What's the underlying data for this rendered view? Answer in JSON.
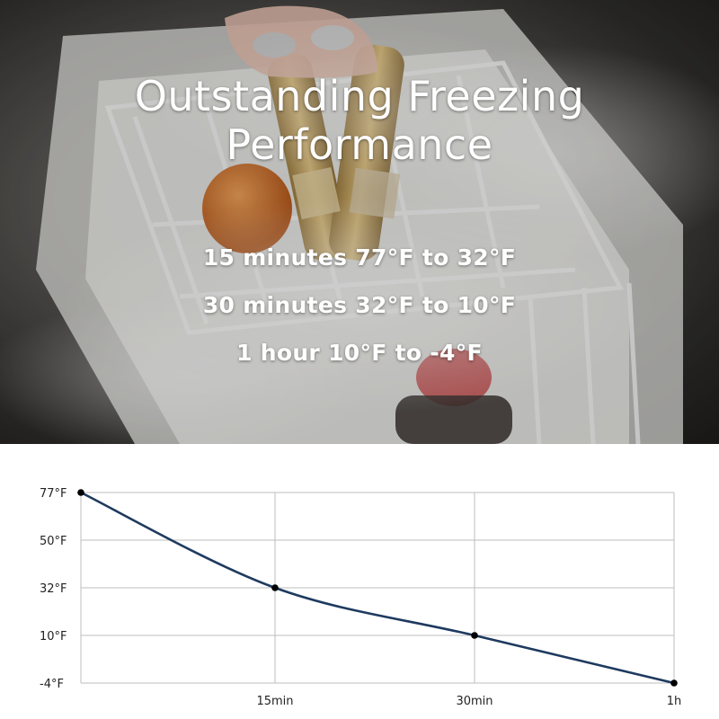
{
  "hero": {
    "title_line1": "Outstanding Freezing",
    "title_line2": "Performance",
    "lines": [
      "15 minutes 77°F to 32°F",
      "30 minutes 32°F to 10°F",
      "1 hour 10°F to -4°F"
    ]
  },
  "colors": {
    "line": "#1e3a5f",
    "grid": "#bdbdbd",
    "marker": "#000000"
  },
  "chart_data": {
    "type": "line",
    "x_labels": [
      "",
      "15min",
      "30min",
      "1h"
    ],
    "y_ticks": [
      {
        "value": 77,
        "label": "77°F"
      },
      {
        "value": 50,
        "label": "50°F"
      },
      {
        "value": 32,
        "label": "32°F"
      },
      {
        "value": 10,
        "label": "10°F"
      },
      {
        "value": -4,
        "label": "-4°F"
      }
    ],
    "x_minutes": [
      0,
      15,
      30,
      60
    ],
    "series": [
      {
        "values": [
          77,
          32,
          10,
          -4
        ]
      }
    ]
  }
}
